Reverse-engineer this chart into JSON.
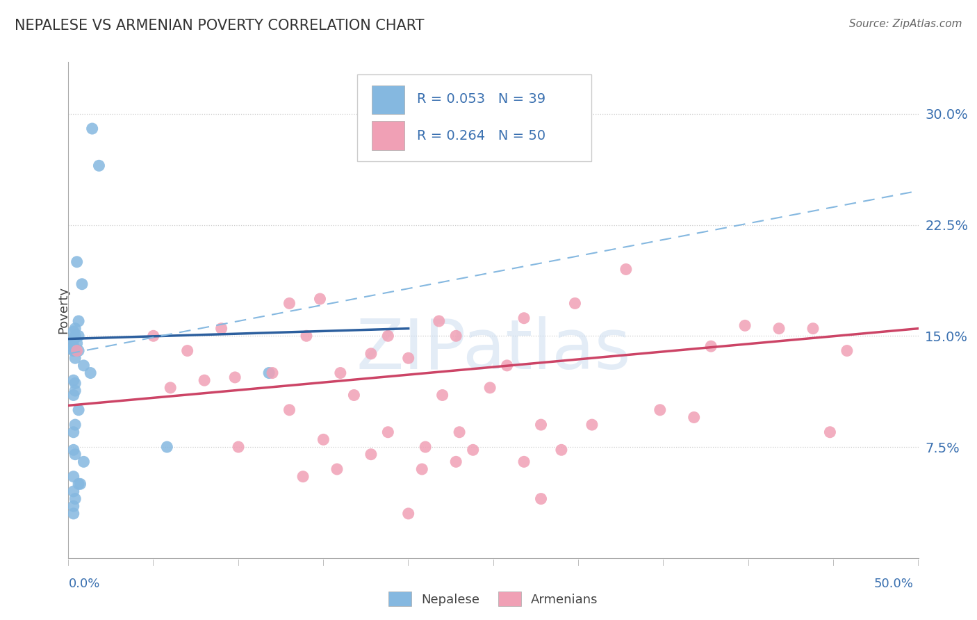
{
  "title": "NEPALESE VS ARMENIAN POVERTY CORRELATION CHART",
  "source": "Source: ZipAtlas.com",
  "ylabel": "Poverty",
  "xlim": [
    0.0,
    0.5
  ],
  "ylim": [
    0.0,
    0.335
  ],
  "yticks": [
    0.075,
    0.15,
    0.225,
    0.3
  ],
  "ytick_labels": [
    "7.5%",
    "15.0%",
    "22.5%",
    "30.0%"
  ],
  "blue_R": 0.053,
  "blue_N": 39,
  "pink_R": 0.264,
  "pink_N": 50,
  "blue_scatter_color": "#85b8e0",
  "pink_scatter_color": "#f0a0b5",
  "blue_line_color": "#2c5f9e",
  "pink_line_color": "#cc4466",
  "dashed_line_color": "#85b8e0",
  "tick_color": "#3a70b0",
  "title_color": "#333333",
  "source_color": "#666666",
  "legend_blue_label": "Nepalese",
  "legend_pink_label": "Armenians",
  "watermark": "ZIPatlas",
  "blue_x": [
    0.014,
    0.018,
    0.005,
    0.008,
    0.006,
    0.004,
    0.003,
    0.004,
    0.006,
    0.003,
    0.003,
    0.005,
    0.003,
    0.003,
    0.003,
    0.004,
    0.006,
    0.004,
    0.009,
    0.013,
    0.003,
    0.004,
    0.118,
    0.004,
    0.003,
    0.006,
    0.004,
    0.003,
    0.058,
    0.003,
    0.004,
    0.009,
    0.003,
    0.006,
    0.007,
    0.003,
    0.004,
    0.003,
    0.003
  ],
  "blue_y": [
    0.29,
    0.265,
    0.2,
    0.185,
    0.16,
    0.155,
    0.153,
    0.15,
    0.15,
    0.148,
    0.147,
    0.145,
    0.143,
    0.142,
    0.14,
    0.14,
    0.14,
    0.135,
    0.13,
    0.125,
    0.12,
    0.118,
    0.125,
    0.113,
    0.11,
    0.1,
    0.09,
    0.085,
    0.075,
    0.073,
    0.07,
    0.065,
    0.055,
    0.05,
    0.05,
    0.045,
    0.04,
    0.035,
    0.03
  ],
  "pink_x": [
    0.005,
    0.148,
    0.188,
    0.228,
    0.328,
    0.418,
    0.268,
    0.398,
    0.438,
    0.05,
    0.09,
    0.13,
    0.298,
    0.218,
    0.378,
    0.458,
    0.07,
    0.098,
    0.14,
    0.178,
    0.348,
    0.258,
    0.2,
    0.16,
    0.12,
    0.08,
    0.06,
    0.248,
    0.22,
    0.168,
    0.13,
    0.368,
    0.308,
    0.278,
    0.23,
    0.188,
    0.448,
    0.15,
    0.1,
    0.21,
    0.238,
    0.29,
    0.178,
    0.228,
    0.268,
    0.208,
    0.158,
    0.138,
    0.278,
    0.2
  ],
  "pink_y": [
    0.14,
    0.175,
    0.15,
    0.15,
    0.195,
    0.155,
    0.162,
    0.157,
    0.155,
    0.15,
    0.155,
    0.172,
    0.172,
    0.16,
    0.143,
    0.14,
    0.14,
    0.122,
    0.15,
    0.138,
    0.1,
    0.13,
    0.135,
    0.125,
    0.125,
    0.12,
    0.115,
    0.115,
    0.11,
    0.11,
    0.1,
    0.095,
    0.09,
    0.09,
    0.085,
    0.085,
    0.085,
    0.08,
    0.075,
    0.075,
    0.073,
    0.073,
    0.07,
    0.065,
    0.065,
    0.06,
    0.06,
    0.055,
    0.04,
    0.03
  ],
  "blue_trend_x0": 0.0,
  "blue_trend_x1": 0.2,
  "blue_trend_y0": 0.148,
  "blue_trend_y1": 0.155,
  "pink_trend_x0": 0.0,
  "pink_trend_x1": 0.5,
  "pink_trend_y0": 0.103,
  "pink_trend_y1": 0.155,
  "dash_trend_x0": 0.0,
  "dash_trend_x1": 0.5,
  "dash_trend_y0": 0.138,
  "dash_trend_y1": 0.248
}
